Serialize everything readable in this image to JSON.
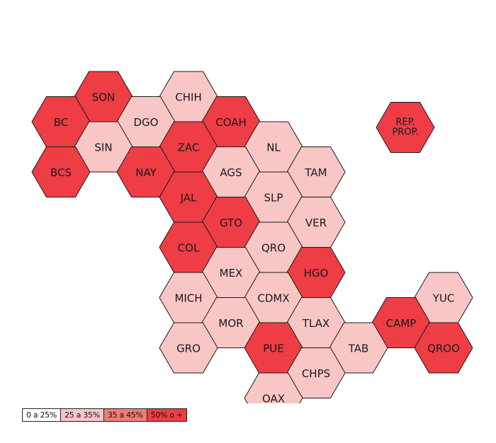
{
  "colors": {
    "c0": "#ffffff",
    "c1": "#f9c6c6",
    "c2": "#f07a7a",
    "c3": "#ee3d45",
    "stroke": "#1a1a1a"
  },
  "legend": [
    {
      "label": "0 a 25%",
      "cls": "c0"
    },
    {
      "label": "25 a 35%",
      "cls": "c1"
    },
    {
      "label": "35 a 45%",
      "cls": "c2"
    },
    {
      "label": "50% o +",
      "cls": "c3"
    }
  ],
  "states": [
    {
      "code": "SON",
      "cls": "c3",
      "col": 1,
      "row": 0,
      "half": 1
    },
    {
      "code": "CHIH",
      "cls": "c1",
      "col": 3,
      "row": 0,
      "half": 1
    },
    {
      "code": "BC",
      "cls": "c3",
      "col": 0,
      "row": 1,
      "half": 0
    },
    {
      "code": "DGO",
      "cls": "c1",
      "col": 2,
      "row": 1,
      "half": 0
    },
    {
      "code": "COAH",
      "cls": "c3",
      "col": 4,
      "row": 1,
      "half": 0
    },
    {
      "code": "SIN",
      "cls": "c1",
      "col": 1,
      "row": 1,
      "half": 1
    },
    {
      "code": "ZAC",
      "cls": "c3",
      "col": 3,
      "row": 1,
      "half": 1
    },
    {
      "code": "NL",
      "cls": "c1",
      "col": 5,
      "row": 1,
      "half": 1
    },
    {
      "code": "BCS",
      "cls": "c3",
      "col": 0,
      "row": 2,
      "half": 0
    },
    {
      "code": "NAY",
      "cls": "c3",
      "col": 2,
      "row": 2,
      "half": 0
    },
    {
      "code": "AGS",
      "cls": "c1",
      "col": 4,
      "row": 2,
      "half": 0
    },
    {
      "code": "TAM",
      "cls": "c1",
      "col": 6,
      "row": 2,
      "half": 0
    },
    {
      "code": "JAL",
      "cls": "c3",
      "col": 3,
      "row": 2,
      "half": 1
    },
    {
      "code": "SLP",
      "cls": "c1",
      "col": 5,
      "row": 2,
      "half": 1
    },
    {
      "code": "GTO",
      "cls": "c3",
      "col": 4,
      "row": 3,
      "half": 0
    },
    {
      "code": "VER",
      "cls": "c1",
      "col": 6,
      "row": 3,
      "half": 0
    },
    {
      "code": "COL",
      "cls": "c3",
      "col": 3,
      "row": 3,
      "half": 1
    },
    {
      "code": "QRO",
      "cls": "c1",
      "col": 5,
      "row": 3,
      "half": 1
    },
    {
      "code": "MEX",
      "cls": "c1",
      "col": 4,
      "row": 4,
      "half": 0
    },
    {
      "code": "HGO",
      "cls": "c3",
      "col": 6,
      "row": 4,
      "half": 0
    },
    {
      "code": "MICH",
      "cls": "c1",
      "col": 3,
      "row": 4,
      "half": 1
    },
    {
      "code": "CDMX",
      "cls": "c1",
      "col": 5,
      "row": 4,
      "half": 1
    },
    {
      "code": "YUC",
      "cls": "c1",
      "col": 9,
      "row": 4,
      "half": 1
    },
    {
      "code": "MOR",
      "cls": "c1",
      "col": 4,
      "row": 5,
      "half": 0
    },
    {
      "code": "TLAX",
      "cls": "c1",
      "col": 6,
      "row": 5,
      "half": 0
    },
    {
      "code": "CAMP",
      "cls": "c3",
      "col": 8,
      "row": 5,
      "half": 0
    },
    {
      "code": "GRO",
      "cls": "c1",
      "col": 3,
      "row": 5,
      "half": 1
    },
    {
      "code": "PUE",
      "cls": "c3",
      "col": 5,
      "row": 5,
      "half": 1
    },
    {
      "code": "TAB",
      "cls": "c1",
      "col": 7,
      "row": 5,
      "half": 1
    },
    {
      "code": "QROO",
      "cls": "c3",
      "col": 9,
      "row": 5,
      "half": 1
    },
    {
      "code": "CHPS",
      "cls": "c1",
      "col": 6,
      "row": 6,
      "half": 0
    },
    {
      "code": "OAX",
      "cls": "c1",
      "col": 5,
      "row": 6,
      "half": 1
    }
  ],
  "rep_prop": {
    "line1": "REP.",
    "line2": "PROP.",
    "cls": "c3"
  }
}
